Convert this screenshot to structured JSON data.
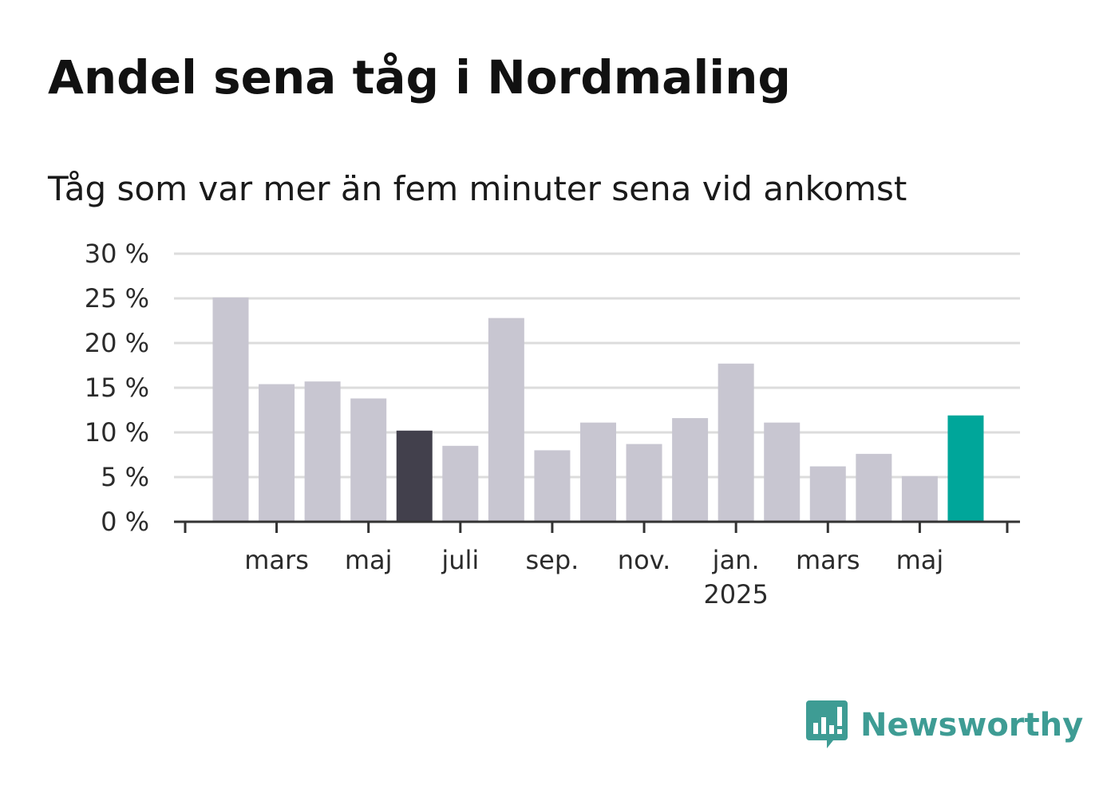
{
  "header": {
    "title": "Andel sena tåg i Nordmaling",
    "subtitle": "Tåg som var mer än fem minuter sena vid ankomst"
  },
  "logo": {
    "text": "Newsworthy",
    "color": "#3e9c94",
    "icon": "newsworthy-chart-bubble-icon"
  },
  "colors": {
    "default_bar": "#c8c6d1",
    "highlight_dark": "#42404c",
    "highlight_accent": "#00a69a",
    "grid": "#dcdcdc",
    "axis": "#333333"
  },
  "chart_data": {
    "type": "bar",
    "categories": [
      "2024-02",
      "2024-03",
      "2024-04",
      "2024-05",
      "2024-06",
      "2024-07",
      "2024-08",
      "2024-09",
      "2024-10",
      "2024-11",
      "2024-12",
      "2025-01",
      "2025-02",
      "2025-03",
      "2025-04",
      "2025-05",
      "2025-06"
    ],
    "values": [
      25.1,
      15.4,
      15.7,
      13.8,
      10.2,
      8.5,
      22.8,
      8.0,
      11.1,
      8.7,
      11.6,
      17.7,
      11.1,
      6.2,
      7.6,
      5.1,
      11.9
    ],
    "highlight": {
      "2024-06": "dark",
      "2025-06": "accent"
    },
    "ylim": [
      0,
      30
    ],
    "yticks": [
      0,
      5,
      10,
      15,
      20,
      25,
      30
    ],
    "ytick_labels": [
      "0 %",
      "5 %",
      "10 %",
      "15 %",
      "20 %",
      "25 %",
      "30 %"
    ],
    "xticks": [
      {
        "month": "2024-03",
        "label": "mars",
        "sublabel": ""
      },
      {
        "month": "2024-05",
        "label": "maj",
        "sublabel": ""
      },
      {
        "month": "2024-07",
        "label": "juli",
        "sublabel": ""
      },
      {
        "month": "2024-09",
        "label": "sep.",
        "sublabel": ""
      },
      {
        "month": "2024-11",
        "label": "nov.",
        "sublabel": ""
      },
      {
        "month": "2025-01",
        "label": "jan.",
        "sublabel": "2025"
      },
      {
        "month": "2025-03",
        "label": "mars",
        "sublabel": ""
      },
      {
        "month": "2025-05",
        "label": "maj",
        "sublabel": ""
      }
    ],
    "xlabel": "",
    "ylabel": "",
    "grid": true,
    "legend": "none"
  }
}
